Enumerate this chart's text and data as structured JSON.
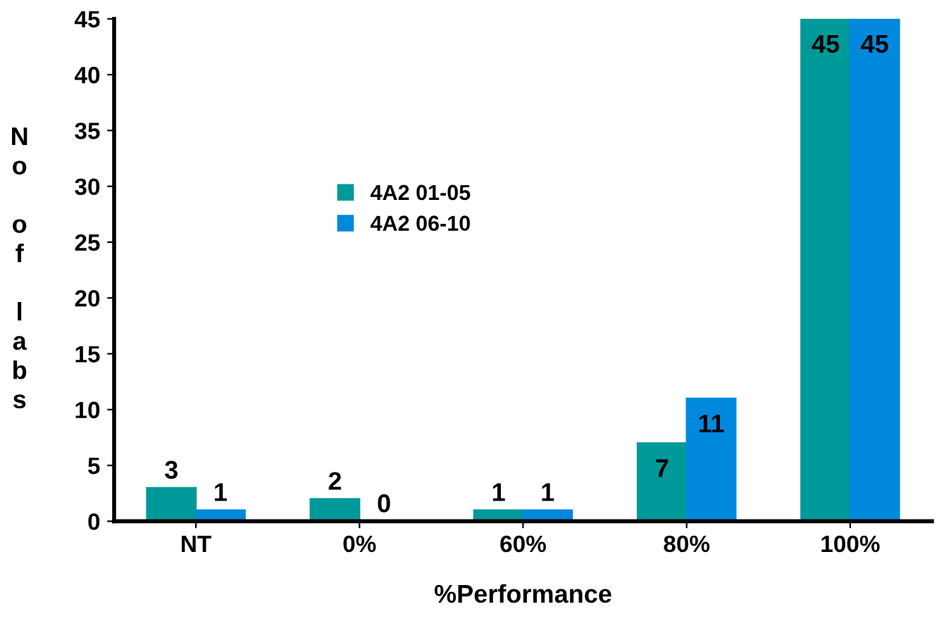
{
  "chart_data": {
    "type": "bar",
    "xlabel": "%Performance",
    "ylabel": "No of labs",
    "categories": [
      "NT",
      "0%",
      "60%",
      "80%",
      "100%"
    ],
    "series": [
      {
        "name": "4A2 01-05",
        "color": "#009999",
        "values": [
          3,
          2,
          1,
          7,
          45
        ]
      },
      {
        "name": "4A2 06-10",
        "color": "#0088dd",
        "values": [
          1,
          0,
          1,
          11,
          45
        ]
      }
    ],
    "ylim": [
      0,
      45
    ],
    "yticks": [
      0,
      5,
      10,
      15,
      20,
      25,
      30,
      35,
      40,
      45
    ],
    "data_labels": true,
    "grid": false,
    "legend": "center left"
  }
}
